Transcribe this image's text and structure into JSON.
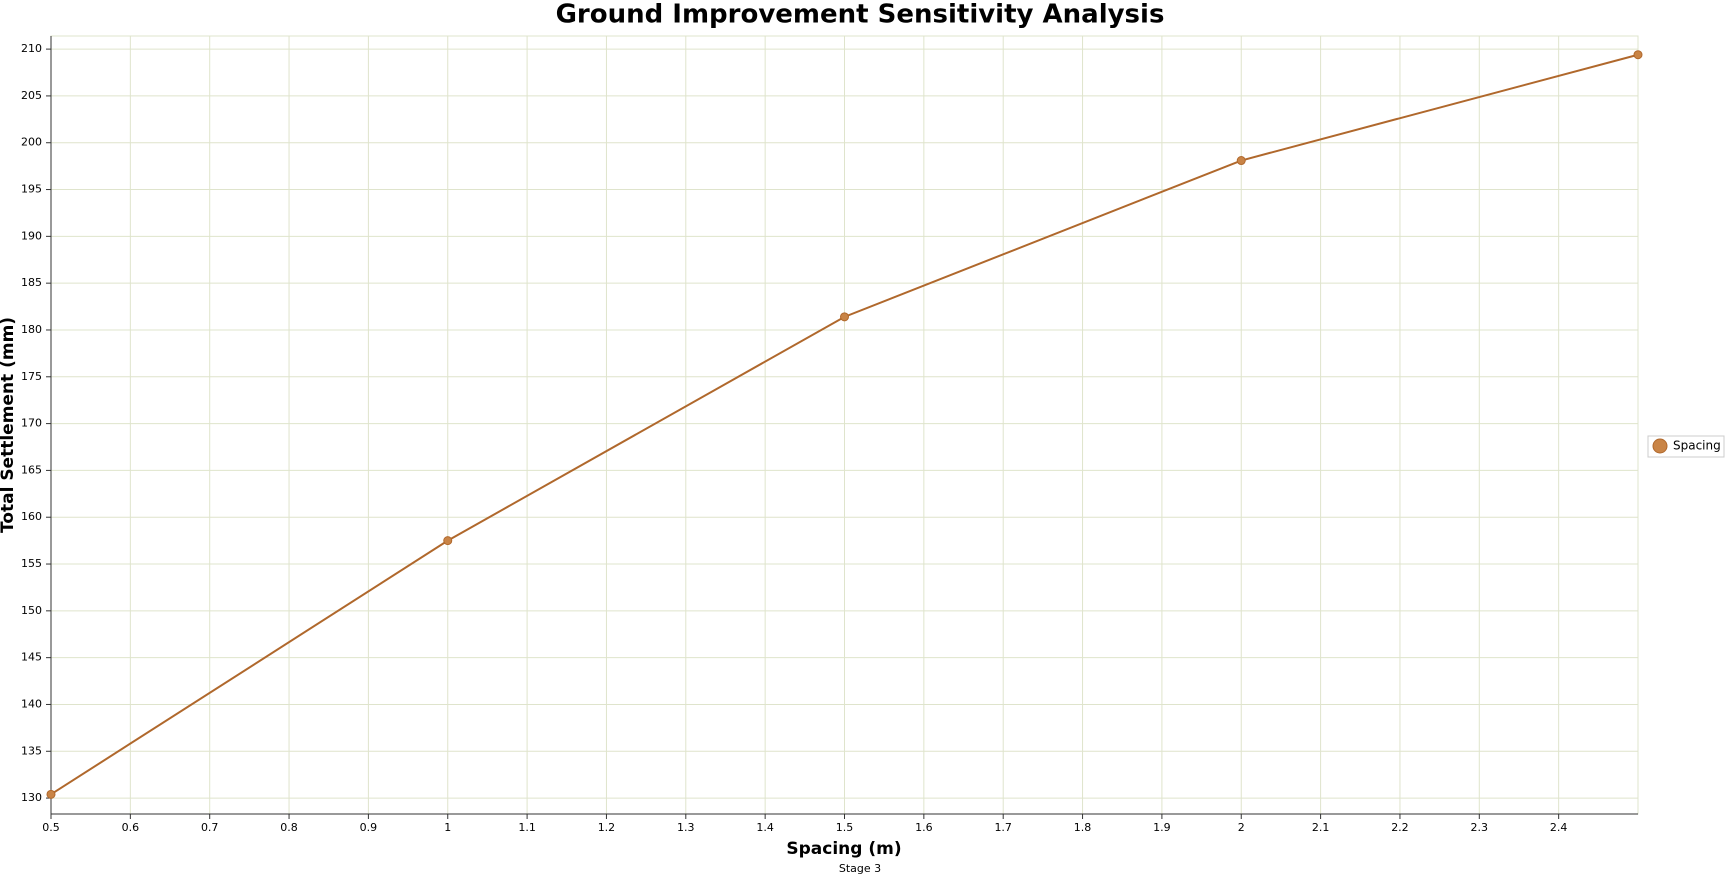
{
  "chart_data": {
    "type": "line",
    "title": "Ground Improvement Sensitivity Analysis",
    "subtitle": "Stage 3",
    "x_label": "Spacing (m)",
    "y_label": "Total Settlement (mm)",
    "x": [
      0.5,
      1,
      1.5,
      2,
      2.5
    ],
    "series": [
      {
        "name": "Spacing",
        "color": "#b0682c",
        "values": [
          130.4,
          157.5,
          181.4,
          198.1,
          209.4
        ]
      }
    ],
    "xlim": [
      0.5,
      2.5
    ],
    "xticks": [
      0.5,
      0.6,
      0.7,
      0.8,
      0.9,
      1,
      1.1,
      1.2,
      1.3,
      1.4,
      1.5,
      1.6,
      1.7,
      1.8,
      1.9,
      2,
      2.1,
      2.2,
      2.3,
      2.4
    ],
    "ylim": [
      128.3,
      211.4
    ],
    "yticks": [
      130,
      135,
      140,
      145,
      150,
      155,
      160,
      165,
      170,
      175,
      180,
      185,
      190,
      195,
      200,
      205,
      210
    ],
    "grid": true,
    "legend": "right"
  }
}
